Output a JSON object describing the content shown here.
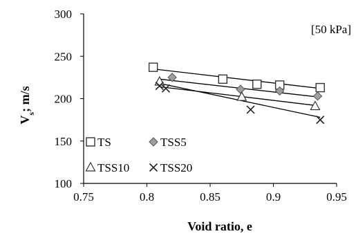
{
  "chart_data": {
    "type": "scatter",
    "title": "",
    "annotation": "[50 kPa]",
    "xlabel": "Void ratio, e",
    "ylabel_main": "V",
    "ylabel_sub": "s",
    "ylabel_rest": "; m/s",
    "xlim": [
      0.75,
      0.95
    ],
    "ylim": [
      100,
      300
    ],
    "xticks": [
      "0.75",
      "0.8",
      "0.85",
      "0.9",
      "0.95"
    ],
    "yticks": [
      "100",
      "150",
      "200",
      "250",
      "300"
    ],
    "grid": false,
    "legend_placement": "bottom-left",
    "series": [
      {
        "name": "TS",
        "marker": "square",
        "x": [
          0.805,
          0.86,
          0.887,
          0.905,
          0.937
        ],
        "y": [
          237,
          223,
          217,
          216,
          213
        ],
        "trend": [
          [
            0.805,
            235
          ],
          [
            0.937,
            212
          ]
        ]
      },
      {
        "name": "TSS5",
        "marker": "diamond",
        "x": [
          0.82,
          0.874,
          0.905,
          0.935
        ],
        "y": [
          225,
          211,
          209,
          203
        ],
        "trend": [
          [
            0.81,
            223
          ],
          [
            0.935,
            202
          ]
        ]
      },
      {
        "name": "TSS10",
        "marker": "triangle",
        "x": [
          0.81,
          0.875,
          0.933
        ],
        "y": [
          220,
          202,
          191
        ],
        "trend": [
          [
            0.81,
            214
          ],
          [
            0.933,
            192
          ]
        ]
      },
      {
        "name": "TSS20",
        "marker": "x",
        "x": [
          0.81,
          0.815,
          0.882,
          0.937
        ],
        "y": [
          215,
          212,
          187,
          175
        ],
        "trend": [
          [
            0.81,
            218
          ],
          [
            0.937,
            178
          ]
        ]
      }
    ]
  }
}
